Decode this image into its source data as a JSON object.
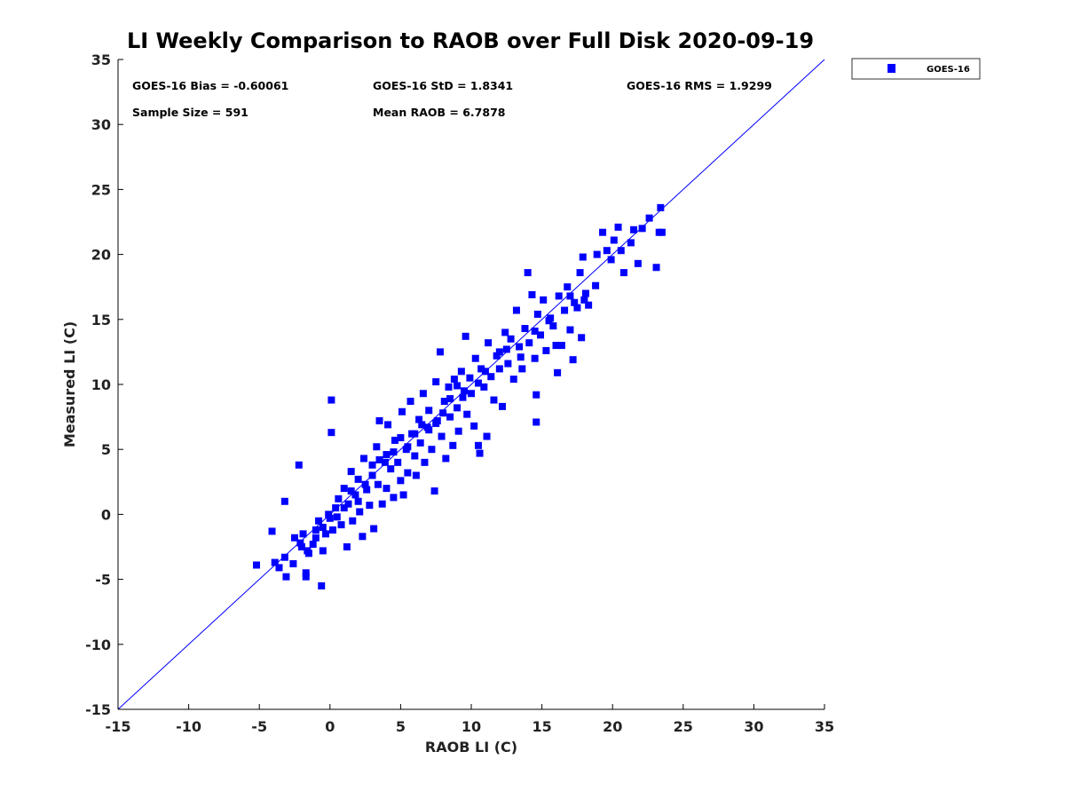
{
  "chart_data": {
    "type": "scatter",
    "title": "LI Weekly Comparison to RAOB over Full Disk 2020-09-19",
    "xlabel": "RAOB LI (C)",
    "ylabel": "Measured LI (C)",
    "xlim": [
      -15,
      35
    ],
    "ylim": [
      -15,
      35
    ],
    "xticks": [
      "-15",
      "-10",
      "-5",
      "0",
      "5",
      "10",
      "15",
      "20",
      "25",
      "30",
      "35"
    ],
    "yticks": [
      "-15",
      "-10",
      "-5",
      "0",
      "5",
      "10",
      "15",
      "20",
      "25",
      "30",
      "35"
    ],
    "legend": {
      "placement": "outside-top-right",
      "entries": [
        "GOES-16"
      ]
    },
    "series_color": "#0000ff",
    "reference_line": "1:1",
    "stats": [
      "GOES-16 Bias = -0.60061",
      "GOES-16 StD = 1.8341",
      "GOES-16 RMS = 1.9299",
      "Sample Size = 591",
      "Mean RAOB = 6.7878"
    ],
    "series": [
      {
        "name": "GOES-16",
        "points": [
          [
            -5.2,
            -3.9
          ],
          [
            -4.1,
            -1.3
          ],
          [
            -3.2,
            1.0
          ],
          [
            -2.2,
            3.8
          ],
          [
            0.1,
            8.8
          ],
          [
            0.1,
            6.3
          ],
          [
            -0.6,
            -5.5
          ],
          [
            -1.7,
            -4.8
          ],
          [
            -1.7,
            -4.5
          ],
          [
            -3.1,
            -4.8
          ],
          [
            -3.6,
            -4.1
          ],
          [
            -3.9,
            -3.7
          ],
          [
            -3.2,
            -3.3
          ],
          [
            -2.6,
            -3.8
          ],
          [
            -2.5,
            -1.8
          ],
          [
            -2.1,
            -2.2
          ],
          [
            -1.9,
            -1.5
          ],
          [
            -1.6,
            -2.8
          ],
          [
            -1.2,
            -2.3
          ],
          [
            -1.0,
            -1.2
          ],
          [
            -0.8,
            -0.5
          ],
          [
            -0.5,
            -2.8
          ],
          [
            -0.3,
            -1.5
          ],
          [
            -0.1,
            0.0
          ],
          [
            0.2,
            -1.2
          ],
          [
            0.4,
            0.5
          ],
          [
            0.6,
            1.2
          ],
          [
            0.8,
            -0.8
          ],
          [
            1.0,
            2.0
          ],
          [
            1.2,
            -2.5
          ],
          [
            1.3,
            0.8
          ],
          [
            1.5,
            3.3
          ],
          [
            1.6,
            -0.5
          ],
          [
            1.8,
            1.5
          ],
          [
            2.0,
            2.7
          ],
          [
            2.1,
            0.2
          ],
          [
            2.3,
            -1.7
          ],
          [
            2.4,
            4.3
          ],
          [
            2.6,
            1.9
          ],
          [
            2.8,
            0.7
          ],
          [
            3.0,
            3.0
          ],
          [
            3.1,
            -1.1
          ],
          [
            3.3,
            5.2
          ],
          [
            3.4,
            2.3
          ],
          [
            3.5,
            7.2
          ],
          [
            3.7,
            0.8
          ],
          [
            3.9,
            4.0
          ],
          [
            4.0,
            2.0
          ],
          [
            4.1,
            6.9
          ],
          [
            4.3,
            3.5
          ],
          [
            4.5,
            1.3
          ],
          [
            4.6,
            5.7
          ],
          [
            4.8,
            4.0
          ],
          [
            5.0,
            2.6
          ],
          [
            5.1,
            7.9
          ],
          [
            5.2,
            1.5
          ],
          [
            5.4,
            5.0
          ],
          [
            5.5,
            3.2
          ],
          [
            5.7,
            8.7
          ],
          [
            5.8,
            6.2
          ],
          [
            6.0,
            4.5
          ],
          [
            6.1,
            3.0
          ],
          [
            6.3,
            7.3
          ],
          [
            6.4,
            5.5
          ],
          [
            6.6,
            9.3
          ],
          [
            6.7,
            4.0
          ],
          [
            6.9,
            6.7
          ],
          [
            7.0,
            8.0
          ],
          [
            7.2,
            5.0
          ],
          [
            7.4,
            1.8
          ],
          [
            7.5,
            10.2
          ],
          [
            7.6,
            7.2
          ],
          [
            7.8,
            12.5
          ],
          [
            7.9,
            6.0
          ],
          [
            8.1,
            8.7
          ],
          [
            8.2,
            4.3
          ],
          [
            8.4,
            9.8
          ],
          [
            8.5,
            7.5
          ],
          [
            8.7,
            5.3
          ],
          [
            8.8,
            10.4
          ],
          [
            9.0,
            8.2
          ],
          [
            9.1,
            6.4
          ],
          [
            9.3,
            11.0
          ],
          [
            9.4,
            9.0
          ],
          [
            9.6,
            13.7
          ],
          [
            9.7,
            7.7
          ],
          [
            9.9,
            10.5
          ],
          [
            10.0,
            9.3
          ],
          [
            10.2,
            6.8
          ],
          [
            10.3,
            12.0
          ],
          [
            10.5,
            5.3
          ],
          [
            10.6,
            4.7
          ],
          [
            10.7,
            11.2
          ],
          [
            10.9,
            9.8
          ],
          [
            11.1,
            6.0
          ],
          [
            11.2,
            13.2
          ],
          [
            11.4,
            10.6
          ],
          [
            11.6,
            8.8
          ],
          [
            11.8,
            12.2
          ],
          [
            12.0,
            11.2
          ],
          [
            12.2,
            8.3
          ],
          [
            12.4,
            14.0
          ],
          [
            12.6,
            11.6
          ],
          [
            12.8,
            13.5
          ],
          [
            13.0,
            10.4
          ],
          [
            13.2,
            15.7
          ],
          [
            13.4,
            12.9
          ],
          [
            13.6,
            11.2
          ],
          [
            13.8,
            14.3
          ],
          [
            14.0,
            18.6
          ],
          [
            14.1,
            13.2
          ],
          [
            14.3,
            16.9
          ],
          [
            14.5,
            12.0
          ],
          [
            14.6,
            7.1
          ],
          [
            14.6,
            9.2
          ],
          [
            14.7,
            15.4
          ],
          [
            14.9,
            13.8
          ],
          [
            15.1,
            16.5
          ],
          [
            15.3,
            12.6
          ],
          [
            15.6,
            15.1
          ],
          [
            15.8,
            14.5
          ],
          [
            16.1,
            10.9
          ],
          [
            16.2,
            16.8
          ],
          [
            16.4,
            13.0
          ],
          [
            16.6,
            15.7
          ],
          [
            16.8,
            17.5
          ],
          [
            17.0,
            14.2
          ],
          [
            17.2,
            11.9
          ],
          [
            17.3,
            16.3
          ],
          [
            17.5,
            15.9
          ],
          [
            17.7,
            18.6
          ],
          [
            17.8,
            13.6
          ],
          [
            17.9,
            19.8
          ],
          [
            18.1,
            17.0
          ],
          [
            18.3,
            16.1
          ],
          [
            18.8,
            17.6
          ],
          [
            18.9,
            20.0
          ],
          [
            19.3,
            21.7
          ],
          [
            19.6,
            20.3
          ],
          [
            19.9,
            19.6
          ],
          [
            20.1,
            21.1
          ],
          [
            20.4,
            22.1
          ],
          [
            20.6,
            20.3
          ],
          [
            20.8,
            18.6
          ],
          [
            21.3,
            20.9
          ],
          [
            21.5,
            21.9
          ],
          [
            21.8,
            19.3
          ],
          [
            22.1,
            22.0
          ],
          [
            22.6,
            22.8
          ],
          [
            23.1,
            19.0
          ],
          [
            23.3,
            21.7
          ],
          [
            23.5,
            21.7
          ],
          [
            23.4,
            23.6
          ],
          [
            16.0,
            13.0
          ],
          [
            12.0,
            12.5
          ],
          [
            9.5,
            9.5
          ],
          [
            8.0,
            7.8
          ],
          [
            6.5,
            6.9
          ],
          [
            5.5,
            5.2
          ],
          [
            4.5,
            4.8
          ],
          [
            3.0,
            3.8
          ],
          [
            2.0,
            1.0
          ],
          [
            1.0,
            0.5
          ],
          [
            0.0,
            -0.3
          ],
          [
            -1.0,
            -1.8
          ],
          [
            11.0,
            11.0
          ],
          [
            13.5,
            12.1
          ],
          [
            15.5,
            14.9
          ],
          [
            7.0,
            6.5
          ],
          [
            6.0,
            6.2
          ],
          [
            4.0,
            4.6
          ],
          [
            2.5,
            2.3
          ],
          [
            1.5,
            1.8
          ],
          [
            0.5,
            -0.2
          ],
          [
            -0.5,
            -1.0
          ],
          [
            9.0,
            9.9
          ],
          [
            10.5,
            10.1
          ],
          [
            12.5,
            12.7
          ],
          [
            14.5,
            14.1
          ],
          [
            17.0,
            16.8
          ],
          [
            18.0,
            16.5
          ],
          [
            8.5,
            8.9
          ],
          [
            7.5,
            7.0
          ],
          [
            5.0,
            5.9
          ],
          [
            3.5,
            4.2
          ],
          [
            -2.0,
            -2.5
          ],
          [
            -1.5,
            -3.0
          ]
        ]
      }
    ]
  }
}
